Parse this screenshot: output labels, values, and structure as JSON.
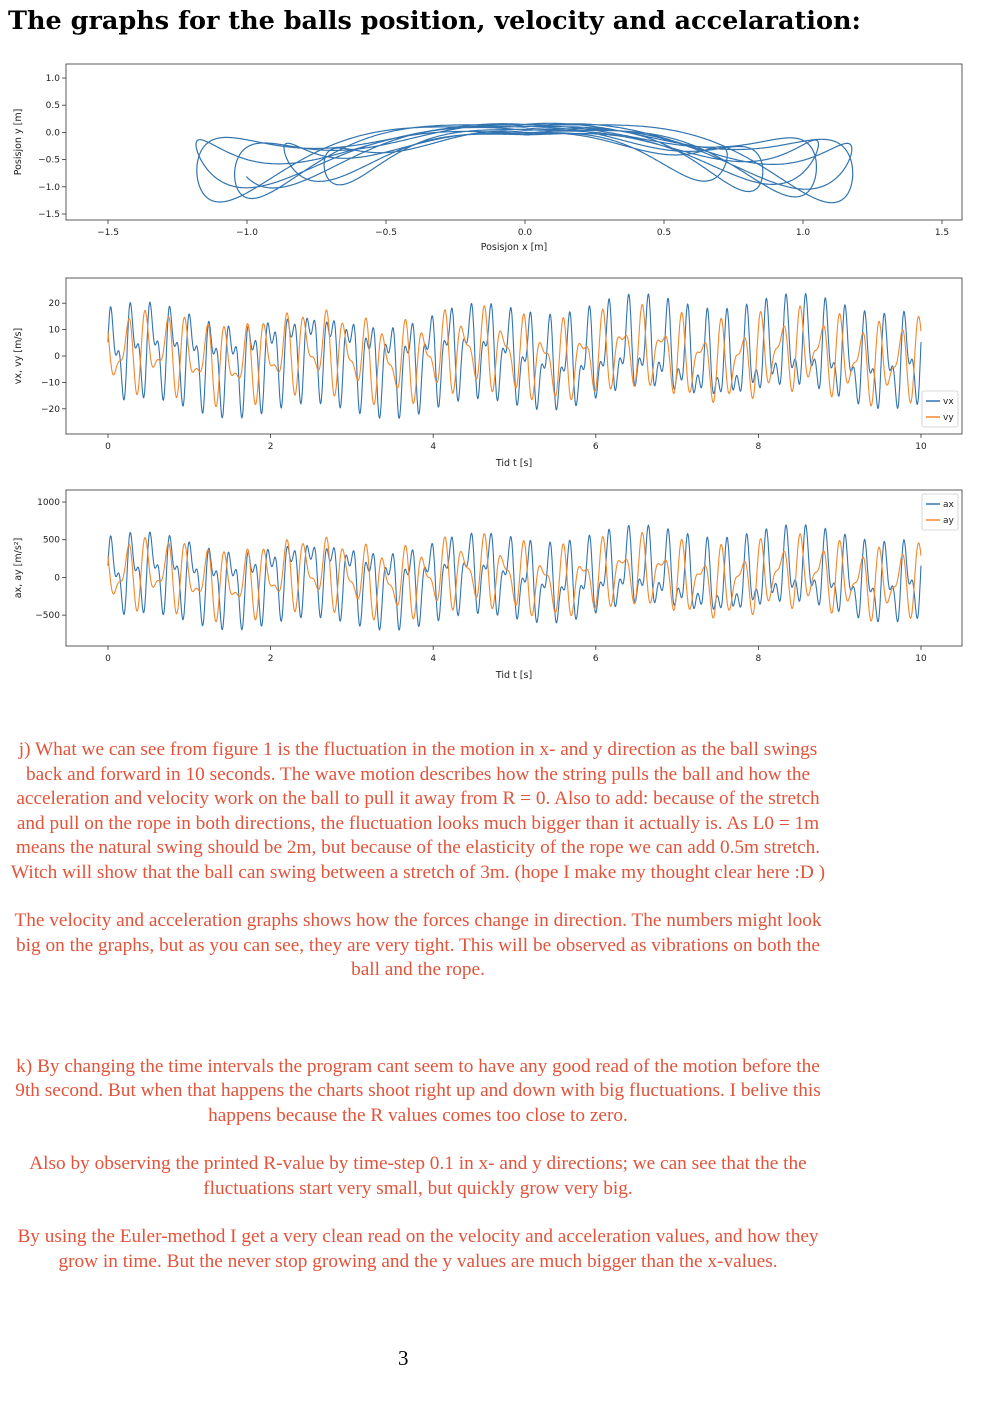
{
  "heading": "The graphs for the balls position, velocity and accelaration:",
  "colors": {
    "blue": "#3274b0",
    "orange": "#f2882c",
    "text": "#e2533a"
  },
  "chart_data": [
    {
      "type": "line",
      "xlabel": "Posisjon x [m]",
      "ylabel": "Posisjon y [m]",
      "xlim": [
        -1.5,
        1.5
      ],
      "ylim": [
        -1.5,
        1.0
      ],
      "xticks": [
        "-1.5",
        "-1.0",
        "-0.5",
        "0.0",
        "0.5",
        "1.0",
        "1.5"
      ],
      "yticks": [
        "1.0",
        "0.5",
        "0.0",
        "-0.5",
        "-1.0",
        "-1.5"
      ],
      "series": [
        {
          "values": "x(t), y(t) trajectory, t = 0 to 10 s"
        }
      ]
    },
    {
      "type": "line",
      "xlabel": "Tid t [s]",
      "ylabel": "vx, vy [m/s]",
      "xlim": [
        0,
        10
      ],
      "ylim": [
        -25,
        25
      ],
      "xticks": [
        "0",
        "2",
        "4",
        "6",
        "8",
        "10"
      ],
      "yticks": [
        "20",
        "10",
        "0",
        "-10",
        "-20"
      ],
      "legend": [
        "vx",
        "vy"
      ],
      "legend_position": "lower right",
      "series": [
        {
          "name": "vx"
        },
        {
          "name": "vy"
        }
      ]
    },
    {
      "type": "line",
      "xlabel": "Tid t [s]",
      "ylabel": "ax, ay [m/s²]",
      "xlim": [
        0,
        10
      ],
      "ylim": [
        -750,
        1000
      ],
      "xticks": [
        "0",
        "2",
        "4",
        "6",
        "8",
        "10"
      ],
      "yticks": [
        "1000",
        "500",
        "0",
        "-500"
      ],
      "legend": [
        "ax",
        "ay"
      ],
      "legend_position": "upper right",
      "series": [
        {
          "name": "ax"
        },
        {
          "name": "ay"
        }
      ]
    }
  ],
  "answers": {
    "j1": "j) What we can see from figure 1 is the fluctuation in the motion in x- and y direction as the ball swings back and forward in 10 seconds. The wave motion describes how the string pulls the ball and how the acceleration and velocity work on the ball to pull it away from R = 0. Also to add: because of the stretch and pull on the rope in both directions, the fluctuation looks much bigger than it actually is. As L0 = 1m means the natural swing should be 2m, but because of the elasticity of the rope we can add 0.5m stretch. Witch will show that the ball can swing between a stretch of 3m. (hope I make my thought clear here :D )",
    "j2": "The velocity and acceleration graphs shows how the forces change in direction. The numbers might look big on the graphs, but as you can see, they are very tight. This will be observed as vibrations on both the ball and the rope.",
    "k1": "k) By changing the time intervals the program cant seem to have any good read of the motion before the 9th second. But when that happens the charts shoot right up and down with big fluctuations. I belive this happens because the R values comes too close to zero.",
    "k2": "Also by observing the printed R-value by time-step 0.1 in x- and y directions; we can see that the the fluctuations start very small, but quickly grow very big.",
    "k3": "By using the Euler-method I get a very clean read on the velocity and acceleration values, and how they grow in time. But the never stop growing and the y values are much bigger than the x-values."
  },
  "page_number": "3"
}
